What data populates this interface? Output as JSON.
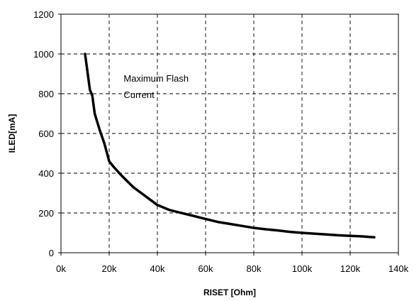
{
  "chart_data": {
    "type": "line",
    "title": "",
    "xlabel": "RISET [Ohm]",
    "ylabel": "ILED[mA]",
    "xlim": [
      0,
      140000
    ],
    "ylim": [
      0,
      1200
    ],
    "x_ticks": [
      0,
      20000,
      40000,
      60000,
      80000,
      100000,
      120000,
      140000
    ],
    "x_tick_labels": [
      "0k",
      "20k",
      "40k",
      "60k",
      "80k",
      "100k",
      "120k",
      "140k"
    ],
    "y_ticks": [
      0,
      200,
      400,
      600,
      800,
      1000,
      1200
    ],
    "y_tick_labels": [
      "0",
      "200",
      "400",
      "600",
      "800",
      "1000",
      "1200"
    ],
    "grid": true,
    "annotation": {
      "lines": [
        "Maximum Flash",
        "Current"
      ],
      "x": 26000,
      "y": 860
    },
    "series": [
      {
        "x": [
          10000,
          11000,
          12000,
          13000,
          14000,
          16000,
          18000,
          20000,
          22000,
          25000,
          30000,
          35000,
          40000,
          45000,
          50000,
          55000,
          60000,
          65000,
          70000,
          75000,
          80000,
          85000,
          90000,
          95000,
          100000,
          105000,
          110000,
          115000,
          120000,
          125000,
          130000
        ],
        "y": [
          1000,
          910,
          820,
          790,
          700,
          620,
          550,
          460,
          430,
          390,
          330,
          285,
          240,
          215,
          200,
          185,
          170,
          155,
          145,
          135,
          125,
          118,
          112,
          105,
          100,
          96,
          92,
          88,
          85,
          82,
          78
        ]
      }
    ]
  }
}
